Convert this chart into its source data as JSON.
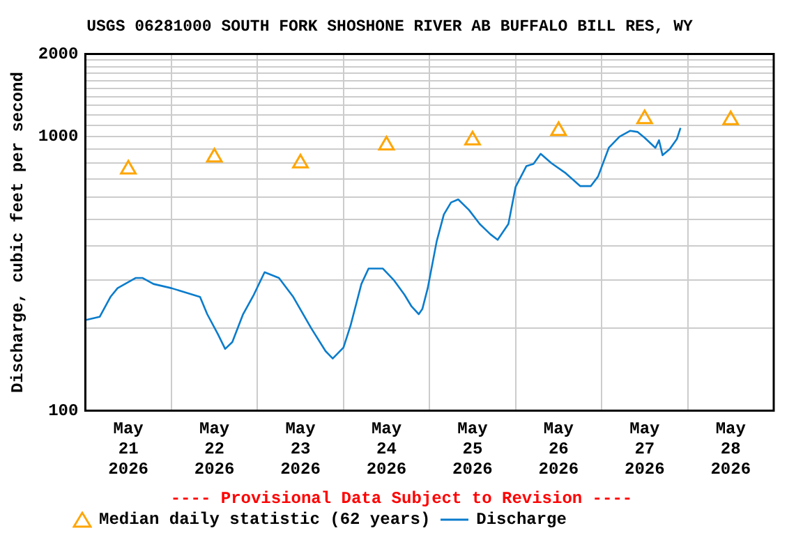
{
  "chart_data": {
    "type": "line",
    "title": "USGS 06281000 SOUTH FORK SHOSHONE RIVER AB BUFFALO BILL RES, WY",
    "ylabel": "Discharge, cubic feet per second",
    "log": "y",
    "grid": true,
    "legend": "bottom",
    "annotations": [
      "---- Provisional Data Subject to Revision ----"
    ],
    "ylim": [
      100,
      2000
    ],
    "yticks": [
      100,
      {
        "value": 200,
        "label": null
      },
      {
        "value": 300,
        "label": null
      },
      {
        "value": 400,
        "label": null
      },
      {
        "value": 500,
        "label": null
      },
      {
        "value": 600,
        "label": null
      },
      {
        "value": 700,
        "label": null
      },
      {
        "value": 800,
        "label": null
      },
      {
        "value": 900,
        "label": null
      },
      1000,
      {
        "value": 1100,
        "label": null
      },
      {
        "value": 1200,
        "label": null
      },
      {
        "value": 1300,
        "label": null
      },
      {
        "value": 1400,
        "label": null
      },
      {
        "value": 1500,
        "label": null
      },
      {
        "value": 1600,
        "label": null
      },
      {
        "value": 1700,
        "label": null
      },
      {
        "value": 1800,
        "label": null
      },
      {
        "value": 1900,
        "label": null
      },
      2000
    ],
    "xlim": [
      "2026-05-21T00:00",
      "2026-05-29T00:00"
    ],
    "xticks": [
      {
        "value": "2026-05-21T12:00",
        "label": "May\n21\n2026"
      },
      {
        "value": "2026-05-22T00:00",
        "label": null
      },
      {
        "value": "2026-05-22T12:00",
        "label": "May\n22\n2026"
      },
      {
        "value": "2026-05-23T00:00",
        "label": null
      },
      {
        "value": "2026-05-23T12:00",
        "label": "May\n23\n2026"
      },
      {
        "value": "2026-05-24T00:00",
        "label": null
      },
      {
        "value": "2026-05-24T12:00",
        "label": "May\n24\n2026"
      },
      {
        "value": "2026-05-25T00:00",
        "label": null
      },
      {
        "value": "2026-05-25T12:00",
        "label": "May\n25\n2026"
      },
      {
        "value": "2026-05-26T00:00",
        "label": null
      },
      {
        "value": "2026-05-26T12:00",
        "label": "May\n26\n2026"
      },
      {
        "value": "2026-05-27T00:00",
        "label": null
      },
      {
        "value": "2026-05-27T12:00",
        "label": "May\n27\n2026"
      },
      {
        "value": "2026-05-28T00:00",
        "label": null
      },
      {
        "value": "2026-05-28T12:00",
        "label": "May\n28\n2026"
      }
    ],
    "series": [
      {
        "name": "Median daily statistic (62 years)",
        "type": "scatter",
        "marker": "triangle",
        "color": "#ffa500",
        "x": [
          "2026-05-21T12:00",
          "2026-05-22T12:00",
          "2026-05-23T12:00",
          "2026-05-24T12:00",
          "2026-05-25T12:00",
          "2026-05-26T12:00",
          "2026-05-27T12:00",
          "2026-05-28T12:00"
        ],
        "values": [
          760,
          840,
          800,
          930,
          970,
          1050,
          1160,
          1150
        ]
      },
      {
        "name": "Discharge",
        "marker": "none",
        "color": "#0a7ccc",
        "x": [
          "2026-05-21T00:00",
          "2026-05-21T04:00",
          "2026-05-21T07:00",
          "2026-05-21T09:00",
          "2026-05-21T14:00",
          "2026-05-21T16:00",
          "2026-05-21T19:00",
          "2026-05-22T00:00",
          "2026-05-22T08:00",
          "2026-05-22T10:00",
          "2026-05-22T13:00",
          "2026-05-22T15:00",
          "2026-05-22T17:00",
          "2026-05-22T20:00",
          "2026-05-22T23:00",
          "2026-05-23T02:00",
          "2026-05-23T06:00",
          "2026-05-23T10:00",
          "2026-05-23T15:00",
          "2026-05-23T19:00",
          "2026-05-23T21:00",
          "2026-05-24T00:00",
          "2026-05-24T02:00",
          "2026-05-24T05:00",
          "2026-05-24T07:00",
          "2026-05-24T11:00",
          "2026-05-24T14:00",
          "2026-05-24T17:00",
          "2026-05-24T19:00",
          "2026-05-24T21:00",
          "2026-05-24T22:00",
          "2026-05-24T23:30",
          "2026-05-25T02:00",
          "2026-05-25T04:00",
          "2026-05-25T06:00",
          "2026-05-25T08:00",
          "2026-05-25T11:00",
          "2026-05-25T14:00",
          "2026-05-25T17:00",
          "2026-05-25T19:00",
          "2026-05-25T22:00",
          "2026-05-26T00:00",
          "2026-05-26T03:00",
          "2026-05-26T05:00",
          "2026-05-26T07:00",
          "2026-05-26T10:00",
          "2026-05-26T14:00",
          "2026-05-26T18:00",
          "2026-05-26T21:00",
          "2026-05-26T23:00",
          "2026-05-27T02:00",
          "2026-05-27T05:00",
          "2026-05-27T08:00",
          "2026-05-27T10:00",
          "2026-05-27T12:00",
          "2026-05-27T15:00",
          "2026-05-27T16:00",
          "2026-05-27T17:00",
          "2026-05-27T19:00",
          "2026-05-27T21:00",
          "2026-05-27T22:00"
        ],
        "values": [
          214,
          220,
          260,
          280,
          305,
          305,
          290,
          280,
          260,
          225,
          190,
          168,
          178,
          225,
          265,
          320,
          305,
          260,
          200,
          165,
          155,
          170,
          205,
          290,
          330,
          330,
          300,
          265,
          240,
          225,
          235,
          280,
          415,
          520,
          575,
          590,
          540,
          480,
          440,
          420,
          480,
          655,
          780,
          795,
          865,
          800,
          735,
          660,
          660,
          715,
          910,
          1000,
          1050,
          1040,
          990,
          910,
          970,
          855,
          900,
          980,
          1075
        ]
      }
    ]
  }
}
